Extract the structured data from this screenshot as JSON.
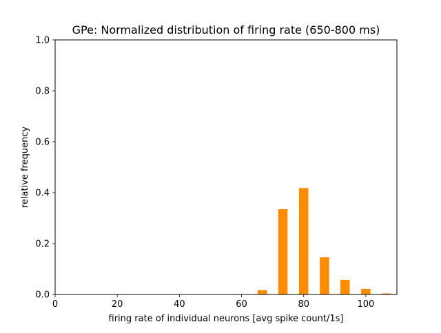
{
  "chart_data": {
    "type": "bar",
    "title": "GPe: Normalized distribution of firing rate (650-800 ms)",
    "xlabel": "firing rate of individual neurons [avg spike count/1s]",
    "ylabel": "relative frequency",
    "xlim": [
      0,
      110
    ],
    "ylim": [
      0,
      1.0
    ],
    "xticks": [
      "0",
      "20",
      "40",
      "60",
      "80",
      "100"
    ],
    "yticks": [
      "0.0",
      "0.2",
      "0.4",
      "0.6",
      "0.8",
      "1.0"
    ],
    "bar_width": 3.0,
    "grid": false,
    "legend": "none",
    "series": [
      {
        "color": "#ff8c00",
        "x": [
          66.7,
          73.3,
          80.0,
          86.7,
          93.3,
          100.0,
          106.7
        ],
        "values": [
          0.017,
          0.335,
          0.418,
          0.146,
          0.057,
          0.022,
          0.004
        ]
      }
    ]
  }
}
